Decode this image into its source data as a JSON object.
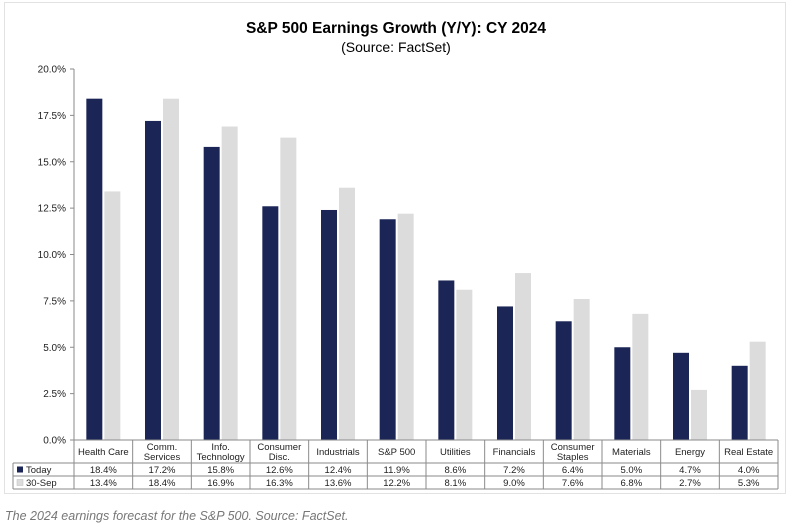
{
  "colors": {
    "today": "#1b2556",
    "sep30": "#dcdcdc",
    "axis": "#8a8a8a",
    "grid": "#d0d0d0"
  },
  "chart_data": {
    "type": "bar",
    "title": "S&P 500 Earnings Growth (Y/Y): CY 2024",
    "subtitle": "(Source: FactSet)",
    "categories": [
      [
        "Health Care"
      ],
      [
        "Comm.",
        "Services"
      ],
      [
        "Info.",
        "Technology"
      ],
      [
        "Consumer",
        "Disc."
      ],
      [
        "Industrials"
      ],
      [
        "S&P 500"
      ],
      [
        "Utilities"
      ],
      [
        "Financials"
      ],
      [
        "Consumer",
        "Staples"
      ],
      [
        "Materials"
      ],
      [
        "Energy"
      ],
      [
        "Real Estate"
      ]
    ],
    "series": [
      {
        "name": "Today",
        "color": "#1b2556",
        "values": [
          18.4,
          17.2,
          15.8,
          12.6,
          12.4,
          11.9,
          8.6,
          7.2,
          6.4,
          5.0,
          4.7,
          4.0
        ],
        "labels": [
          "18.4%",
          "17.2%",
          "15.8%",
          "12.6%",
          "12.4%",
          "11.9%",
          "8.6%",
          "7.2%",
          "6.4%",
          "5.0%",
          "4.7%",
          "4.0%"
        ]
      },
      {
        "name": "30-Sep",
        "color": "#dcdcdc",
        "values": [
          13.4,
          18.4,
          16.9,
          16.3,
          13.6,
          12.2,
          8.1,
          9.0,
          7.6,
          6.8,
          2.7,
          5.3
        ],
        "labels": [
          "13.4%",
          "18.4%",
          "16.9%",
          "16.3%",
          "13.6%",
          "12.2%",
          "8.1%",
          "9.0%",
          "7.6%",
          "6.8%",
          "2.7%",
          "5.3%"
        ]
      }
    ],
    "ylim": [
      0,
      20
    ],
    "yticks": [
      "0.0%",
      "2.5%",
      "5.0%",
      "7.5%",
      "10.0%",
      "12.5%",
      "15.0%",
      "17.5%",
      "20.0%"
    ],
    "ytick_values": [
      0,
      2.5,
      5,
      7.5,
      10,
      12.5,
      15,
      17.5,
      20
    ],
    "grid": false,
    "legend": "data table below chart"
  },
  "caption": "The 2024 earnings forecast for the S&P 500. Source: FactSet."
}
